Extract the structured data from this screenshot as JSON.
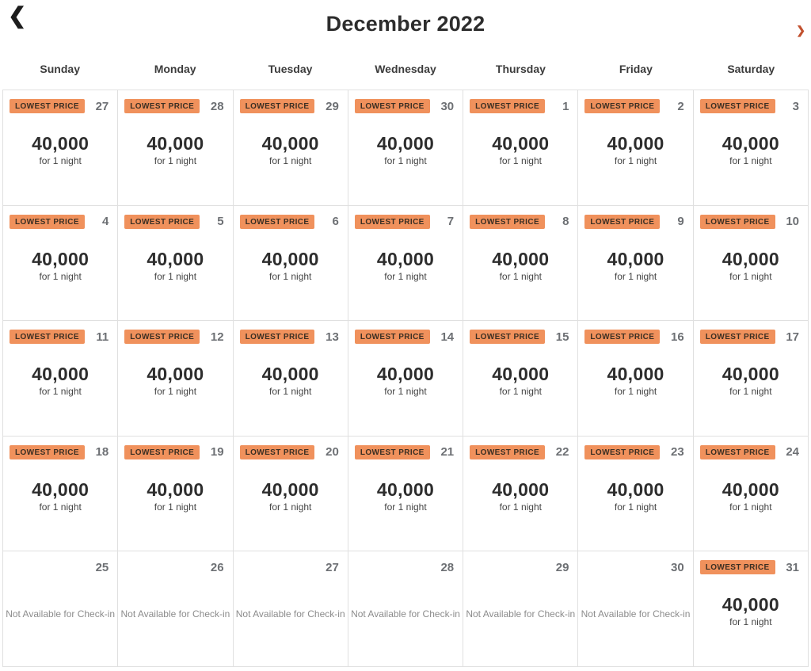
{
  "header": {
    "title": "December 2022",
    "back_icon_glyph": "❮",
    "next_icon_glyph": "❯"
  },
  "weekdays": [
    "Sunday",
    "Monday",
    "Tuesday",
    "Wednesday",
    "Thursday",
    "Friday",
    "Saturday"
  ],
  "labels": {
    "badge": "LOWEST PRICE",
    "price_unit": "for 1 night",
    "not_available": "Not Available for Check-in"
  },
  "colors": {
    "badge_bg": "#F0915C",
    "badge_text": "#3B2F23",
    "title_color": "#2D2D2D",
    "weekday_color": "#3C3C3C",
    "day_number_color": "#6D7074",
    "price_color": "#2D2D2D",
    "unit_color": "#444444",
    "na_color": "#8C8C8C",
    "grid_border": "#E0E0E0",
    "back_color": "#1D1D1D",
    "next_color": "#C2512F"
  },
  "calendar": {
    "weeks": [
      [
        {
          "day": "27",
          "available": true,
          "price": "40,000"
        },
        {
          "day": "28",
          "available": true,
          "price": "40,000"
        },
        {
          "day": "29",
          "available": true,
          "price": "40,000"
        },
        {
          "day": "30",
          "available": true,
          "price": "40,000"
        },
        {
          "day": "1",
          "available": true,
          "price": "40,000"
        },
        {
          "day": "2",
          "available": true,
          "price": "40,000"
        },
        {
          "day": "3",
          "available": true,
          "price": "40,000"
        }
      ],
      [
        {
          "day": "4",
          "available": true,
          "price": "40,000"
        },
        {
          "day": "5",
          "available": true,
          "price": "40,000"
        },
        {
          "day": "6",
          "available": true,
          "price": "40,000"
        },
        {
          "day": "7",
          "available": true,
          "price": "40,000"
        },
        {
          "day": "8",
          "available": true,
          "price": "40,000"
        },
        {
          "day": "9",
          "available": true,
          "price": "40,000"
        },
        {
          "day": "10",
          "available": true,
          "price": "40,000"
        }
      ],
      [
        {
          "day": "11",
          "available": true,
          "price": "40,000"
        },
        {
          "day": "12",
          "available": true,
          "price": "40,000"
        },
        {
          "day": "13",
          "available": true,
          "price": "40,000"
        },
        {
          "day": "14",
          "available": true,
          "price": "40,000"
        },
        {
          "day": "15",
          "available": true,
          "price": "40,000"
        },
        {
          "day": "16",
          "available": true,
          "price": "40,000"
        },
        {
          "day": "17",
          "available": true,
          "price": "40,000"
        }
      ],
      [
        {
          "day": "18",
          "available": true,
          "price": "40,000"
        },
        {
          "day": "19",
          "available": true,
          "price": "40,000"
        },
        {
          "day": "20",
          "available": true,
          "price": "40,000"
        },
        {
          "day": "21",
          "available": true,
          "price": "40,000"
        },
        {
          "day": "22",
          "available": true,
          "price": "40,000"
        },
        {
          "day": "23",
          "available": true,
          "price": "40,000"
        },
        {
          "day": "24",
          "available": true,
          "price": "40,000"
        }
      ],
      [
        {
          "day": "25",
          "available": false
        },
        {
          "day": "26",
          "available": false
        },
        {
          "day": "27",
          "available": false
        },
        {
          "day": "28",
          "available": false
        },
        {
          "day": "29",
          "available": false
        },
        {
          "day": "30",
          "available": false
        },
        {
          "day": "31",
          "available": true,
          "price": "40,000"
        }
      ]
    ]
  }
}
